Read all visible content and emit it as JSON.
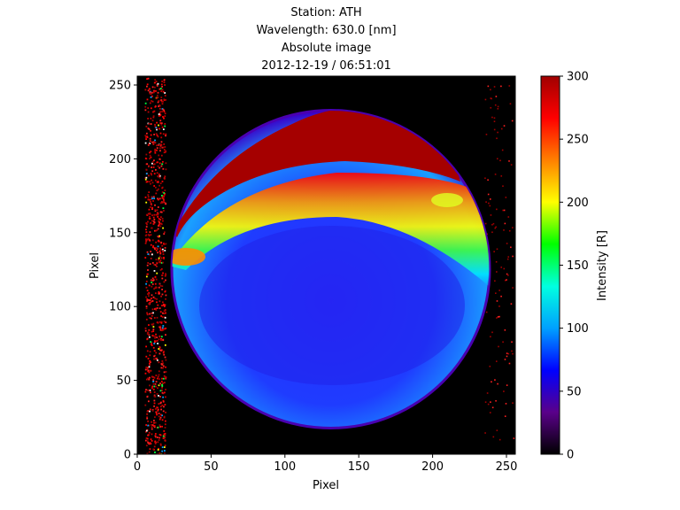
{
  "chart_data": {
    "type": "heatmap",
    "title_lines": [
      "Station: ATH",
      "Wavelength: 630.0 [nm]",
      "Absolute image",
      "2012-12-19 / 06:51:01"
    ],
    "xlabel": "Pixel",
    "ylabel": "Pixel",
    "xlim": [
      0,
      256
    ],
    "ylim": [
      0,
      256
    ],
    "x_ticks": [
      0,
      50,
      100,
      150,
      200,
      250
    ],
    "y_ticks": [
      0,
      50,
      100,
      150,
      200,
      250
    ],
    "colorbar": {
      "label": "Intensity [R]",
      "min": 0,
      "max": 300,
      "ticks": [
        0,
        50,
        100,
        150,
        200,
        250,
        300
      ]
    },
    "features": {
      "fov_circle": {
        "center": [
          131,
          125
        ],
        "radius": 107
      },
      "aurora_arc": {
        "description": "saturated emission at top of field of view",
        "value": 300
      },
      "background_level": 60
    },
    "colors": {
      "colormap": [
        "#000000",
        "#5a008a",
        "#0000ff",
        "#00a0ff",
        "#00ffe0",
        "#00ff00",
        "#ffff00",
        "#ff8000",
        "#ff0000",
        "#a00000"
      ]
    },
    "grid": false
  }
}
